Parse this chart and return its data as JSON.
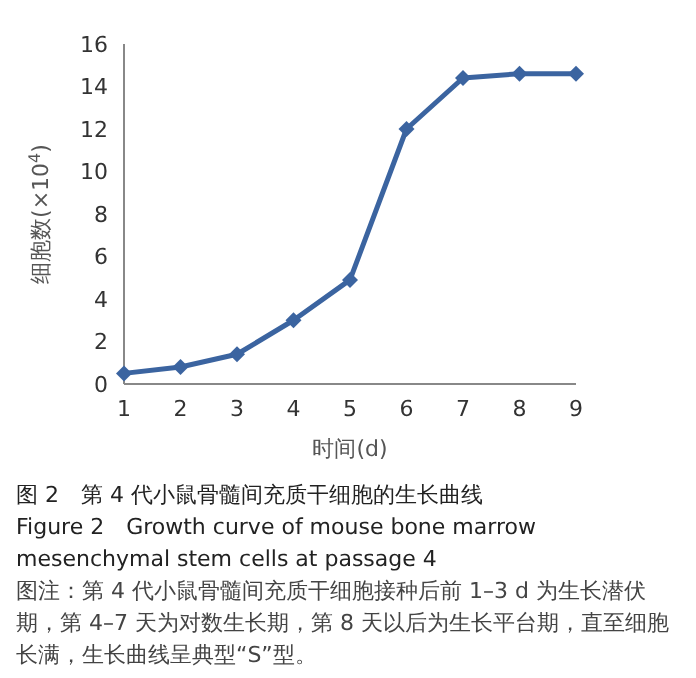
{
  "chart_data": {
    "type": "line",
    "categories": [
      "1",
      "2",
      "3",
      "4",
      "5",
      "6",
      "7",
      "8",
      "9"
    ],
    "series": [
      {
        "color": "#3b64a0",
        "values": [
          0.5,
          0.8,
          1.4,
          3.0,
          4.9,
          12.0,
          14.4,
          14.6,
          14.6
        ]
      }
    ],
    "ylim": [
      0,
      16
    ],
    "yticks": [
      0,
      2,
      4,
      6,
      8,
      10,
      12,
      14,
      16
    ],
    "xlabel": "时间(d)",
    "ylabel": "细胞数(×10$^{4}$)",
    "marker": "diamond",
    "line_style": "solid",
    "grid": false,
    "legend": false,
    "annotations": [
      "图 2　第 4 代小鼠骨髓间充质干细胞的生长曲线",
      "Figure 2　Growth curve of mouse bone marrow mesenchymal stem cells at passage 4",
      "图注：第 4 代小鼠骨髓间充质干细胞接种后前 1–3 d 为生长潜伏期，第 4–7 天为对数生长期，第 8 天以后为生长平台期，直至细胞长满，生长曲线呈典型“S”型。"
    ]
  }
}
